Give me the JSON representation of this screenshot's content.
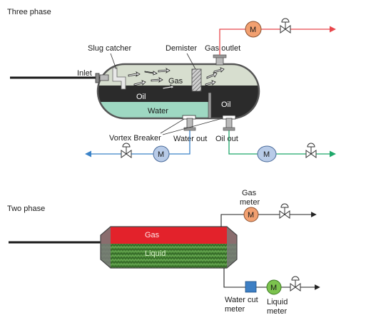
{
  "three_phase": {
    "title": "Three phase",
    "labels": {
      "slug_catcher": "Slug catcher",
      "demister": "Demister",
      "gas_outlet": "Gas outlet",
      "inlet": "Inlet",
      "gas": "Gas",
      "oil_left": "Oil",
      "oil_right": "Oil",
      "water": "Water",
      "vortex_breaker": "Vortex Breaker",
      "water_out": "Water out",
      "oil_out": "Oil out"
    },
    "meters": {
      "gas": "M",
      "water": "M",
      "oil": "M"
    },
    "colors": {
      "gas_line": "#e8474c",
      "water_line": "#3b83c8",
      "oil_line": "#1fa86a",
      "gas_meter": "#f2a070",
      "water_meter": "#b8cbe8",
      "oil_meter": "#b8cbe8",
      "gas_space": "#d7decf",
      "oil_layer": "#2b2b2b",
      "water_layer": "#9ed8c2"
    }
  },
  "two_phase": {
    "title": "Two phase",
    "labels": {
      "gas": "Gas",
      "liquid": "Liquid",
      "gas_meter_line1": "Gas",
      "gas_meter_line2": "meter",
      "water_cut_line1": "Water cut",
      "water_cut_line2": "meter",
      "liquid_meter_line1": "Liquid",
      "liquid_meter_line2": "meter"
    },
    "meters": {
      "gas": "M",
      "liquid": "M"
    },
    "colors": {
      "gas_band": "#e3222b",
      "liquid_band": "#4c8b3a",
      "gas_meter": "#f2a070",
      "liquid_meter": "#7cc34e",
      "water_cut_box": "#3d7fc4"
    }
  }
}
